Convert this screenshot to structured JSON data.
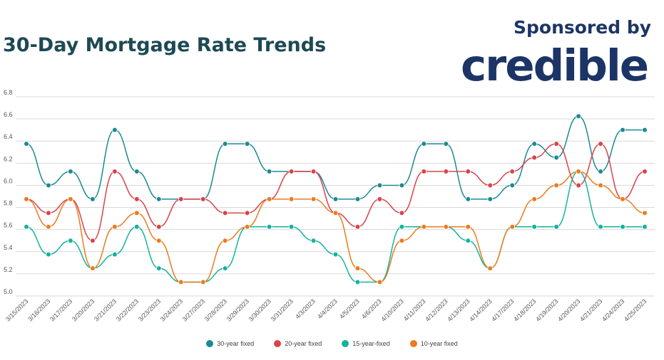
{
  "header": {
    "title": "30-Day Mortgage Rate Trends",
    "sponsor_label": "Sponsored by",
    "sponsor_logo": "credible"
  },
  "chart_data": {
    "type": "line",
    "title": "30-Day Mortgage Rate Trends",
    "xlabel": "",
    "ylabel": "",
    "ylim": [
      5.0,
      6.8
    ],
    "yticks": [
      "6.8",
      "6.6",
      "6.4",
      "6.2",
      "6.0",
      "5.8",
      "5.6",
      "5.4",
      "5.2",
      "5.0"
    ],
    "grid": true,
    "legend_position": "bottom",
    "categories": [
      "3/15/2023",
      "3/16/2023",
      "3/17/2023",
      "3/20/2023",
      "3/21/2023",
      "3/22/2023",
      "3/23/2023",
      "3/24/2023",
      "3/27/2023",
      "3/28/2023",
      "3/29/2023",
      "3/30/2023",
      "3/31/2023",
      "4/3/2023",
      "4/4/2023",
      "4/5/2023",
      "4/6/2023",
      "4/10/2023",
      "4/11/2023",
      "4/12/2023",
      "4/13/2023",
      "4/14/2023",
      "4/17/2023",
      "4/18/2023",
      "4/19/2023",
      "4/20/2023",
      "4/21/2023",
      "4/24/2023",
      "4/25/2023"
    ],
    "series": [
      {
        "name": "30-year fixed",
        "color": "#1b8a94",
        "values": [
          6.375,
          6.0,
          6.125,
          5.875,
          6.5,
          6.125,
          5.875,
          5.875,
          5.875,
          6.375,
          6.375,
          6.125,
          6.125,
          6.125,
          5.875,
          5.875,
          6.0,
          6.0,
          6.375,
          6.375,
          5.875,
          5.875,
          6.0,
          6.375,
          6.25,
          6.625,
          6.125,
          6.5,
          6.5
        ]
      },
      {
        "name": "20-year fixed",
        "color": "#d9434b",
        "values": [
          5.875,
          5.75,
          5.875,
          5.5,
          6.125,
          5.875,
          5.625,
          5.875,
          5.875,
          5.75,
          5.75,
          5.875,
          6.125,
          6.125,
          5.75,
          5.625,
          5.875,
          5.75,
          6.125,
          6.125,
          6.125,
          6.0,
          6.125,
          6.25,
          6.375,
          6.0,
          6.375,
          5.875,
          6.125
        ]
      },
      {
        "name": "15-year-fixed",
        "color": "#14b39b",
        "values": [
          5.625,
          5.375,
          5.5,
          5.25,
          5.375,
          5.625,
          5.25,
          5.125,
          5.125,
          5.25,
          5.625,
          5.625,
          5.625,
          5.5,
          5.375,
          5.125,
          5.125,
          5.625,
          5.625,
          5.625,
          5.5,
          5.25,
          5.625,
          5.625,
          5.625,
          6.125,
          5.625,
          5.625,
          5.625
        ]
      },
      {
        "name": "10-year fixed",
        "color": "#ec7b1e",
        "values": [
          5.875,
          5.625,
          5.875,
          5.25,
          5.625,
          5.75,
          5.5,
          5.125,
          5.125,
          5.5,
          5.625,
          5.875,
          5.875,
          5.875,
          5.75,
          5.25,
          5.125,
          5.5,
          5.625,
          5.625,
          5.625,
          5.25,
          5.625,
          5.875,
          6.0,
          6.125,
          6.0,
          5.875,
          5.75
        ]
      }
    ]
  }
}
